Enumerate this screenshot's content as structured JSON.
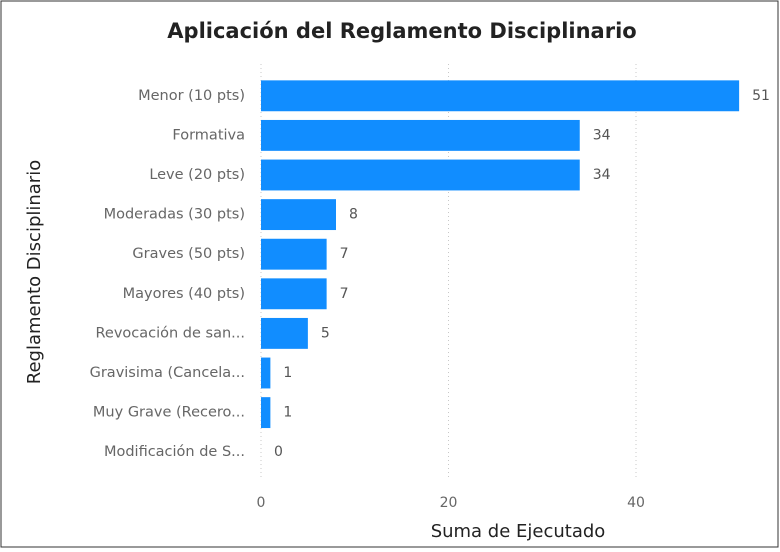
{
  "chart_data": {
    "type": "barh",
    "title": "Aplicación del Reglamento Disciplinario",
    "x_label": "Suma de Ejecutado",
    "y_label": "Reglamento Disciplinario",
    "categories": [
      "Menor (10 pts)",
      "Formativa",
      "Leve (20 pts)",
      "Moderadas (30 pts)",
      "Graves (50 pts)",
      "Mayores (40 pts)",
      "Revocación de san...",
      "Gravisima (Cancela...",
      "Muy Grave (Recero...",
      "Modificación de S..."
    ],
    "values": [
      51,
      34,
      34,
      8,
      7,
      7,
      5,
      1,
      1,
      0
    ],
    "color": "#118dff",
    "xlim": [
      0,
      52
    ],
    "xticks": [
      0,
      20,
      40
    ],
    "grid": true
  }
}
